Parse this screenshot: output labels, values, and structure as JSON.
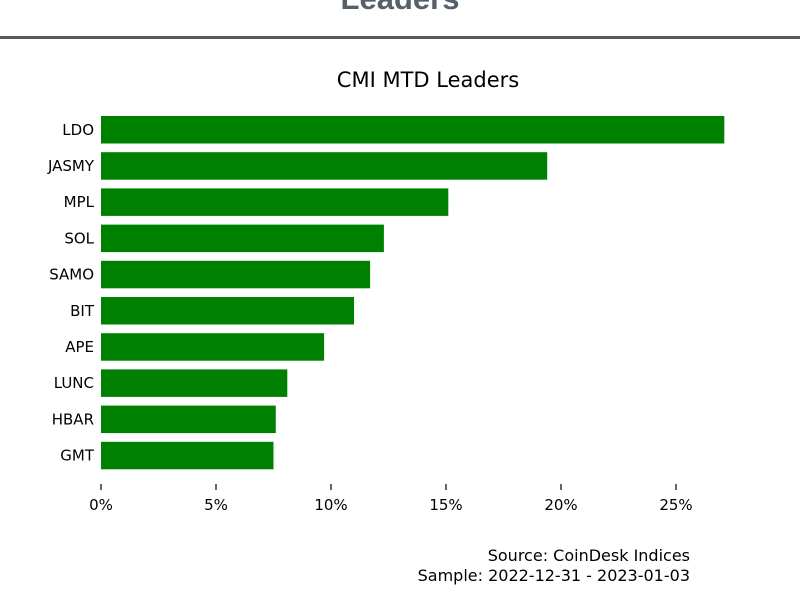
{
  "header": {
    "title": "Leaders"
  },
  "chart_data": {
    "type": "bar",
    "orientation": "horizontal",
    "title": "CMI MTD Leaders",
    "xlabel": "",
    "ylabel": "",
    "categories": [
      "LDO",
      "JASMY",
      "MPL",
      "SOL",
      "SAMO",
      "BIT",
      "APE",
      "LUNC",
      "HBAR",
      "GMT"
    ],
    "values": [
      27.1,
      19.4,
      15.1,
      12.3,
      11.7,
      11.0,
      9.7,
      8.1,
      7.6,
      7.5
    ],
    "xlim": [
      0,
      29
    ],
    "xticks": [
      0,
      5,
      10,
      15,
      20,
      25
    ],
    "xtick_labels": [
      "0%",
      "5%",
      "10%",
      "15%",
      "20%",
      "25%"
    ],
    "bar_color": "#008000",
    "grid": false
  },
  "notes": {
    "source": "Source: CoinDesk Indices",
    "sample": "Sample: 2022-12-31 - 2023-01-03"
  }
}
